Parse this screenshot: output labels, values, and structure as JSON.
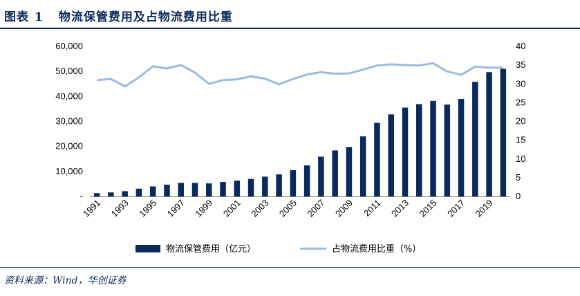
{
  "header": {
    "label": "图表",
    "number": "1",
    "title": "物流保管费用及占物流费用比重"
  },
  "source": "资料来源：Wind，华创证券",
  "chart_data": {
    "type": "bar+line",
    "categories": [
      "1991",
      "1992",
      "1993",
      "1994",
      "1995",
      "1996",
      "1997",
      "1998",
      "1999",
      "2000",
      "2001",
      "2002",
      "2003",
      "2004",
      "2005",
      "2006",
      "2007",
      "2008",
      "2009",
      "2010",
      "2011",
      "2012",
      "2013",
      "2014",
      "2015",
      "2016",
      "2017",
      "2018",
      "2019",
      "2020"
    ],
    "x_tick_labels": [
      "1991",
      "1993",
      "1995",
      "1997",
      "1999",
      "2001",
      "2003",
      "2005",
      "2007",
      "2009",
      "2011",
      "2013",
      "2015",
      "2017",
      "2019"
    ],
    "series": [
      {
        "name": "物流保管费用（亿元）",
        "type": "bar",
        "axis": "left",
        "color": "#0b2a5b",
        "values": [
          1300,
          1600,
          2100,
          3100,
          4000,
          4700,
          5400,
          5400,
          5200,
          5800,
          6300,
          7000,
          7900,
          8800,
          10500,
          12400,
          15900,
          18400,
          19700,
          24000,
          29400,
          32800,
          35500,
          36900,
          38200,
          36700,
          39000,
          45800,
          49700,
          51000
        ]
      },
      {
        "name": "占物流费用比重（%）",
        "type": "line",
        "axis": "right",
        "color": "#9bbbe0",
        "values": [
          31.0,
          31.3,
          29.3,
          31.7,
          34.7,
          34.1,
          35.0,
          33.0,
          30.0,
          31.0,
          31.2,
          32.0,
          31.4,
          29.9,
          31.3,
          32.5,
          33.1,
          32.7,
          32.8,
          33.8,
          34.9,
          35.2,
          35.0,
          34.9,
          35.5,
          33.3,
          32.4,
          34.6,
          34.3,
          34.3
        ]
      }
    ],
    "left_axis": {
      "min": 0,
      "max": 60000,
      "ticks": [
        "-",
        "10,000",
        "20,000",
        "30,000",
        "40,000",
        "50,000",
        "60,000"
      ]
    },
    "right_axis": {
      "min": 0,
      "max": 40,
      "ticks": [
        "0",
        "5",
        "10",
        "15",
        "20",
        "25",
        "30",
        "35",
        "40"
      ]
    },
    "grid": false,
    "legend_position": "bottom"
  }
}
